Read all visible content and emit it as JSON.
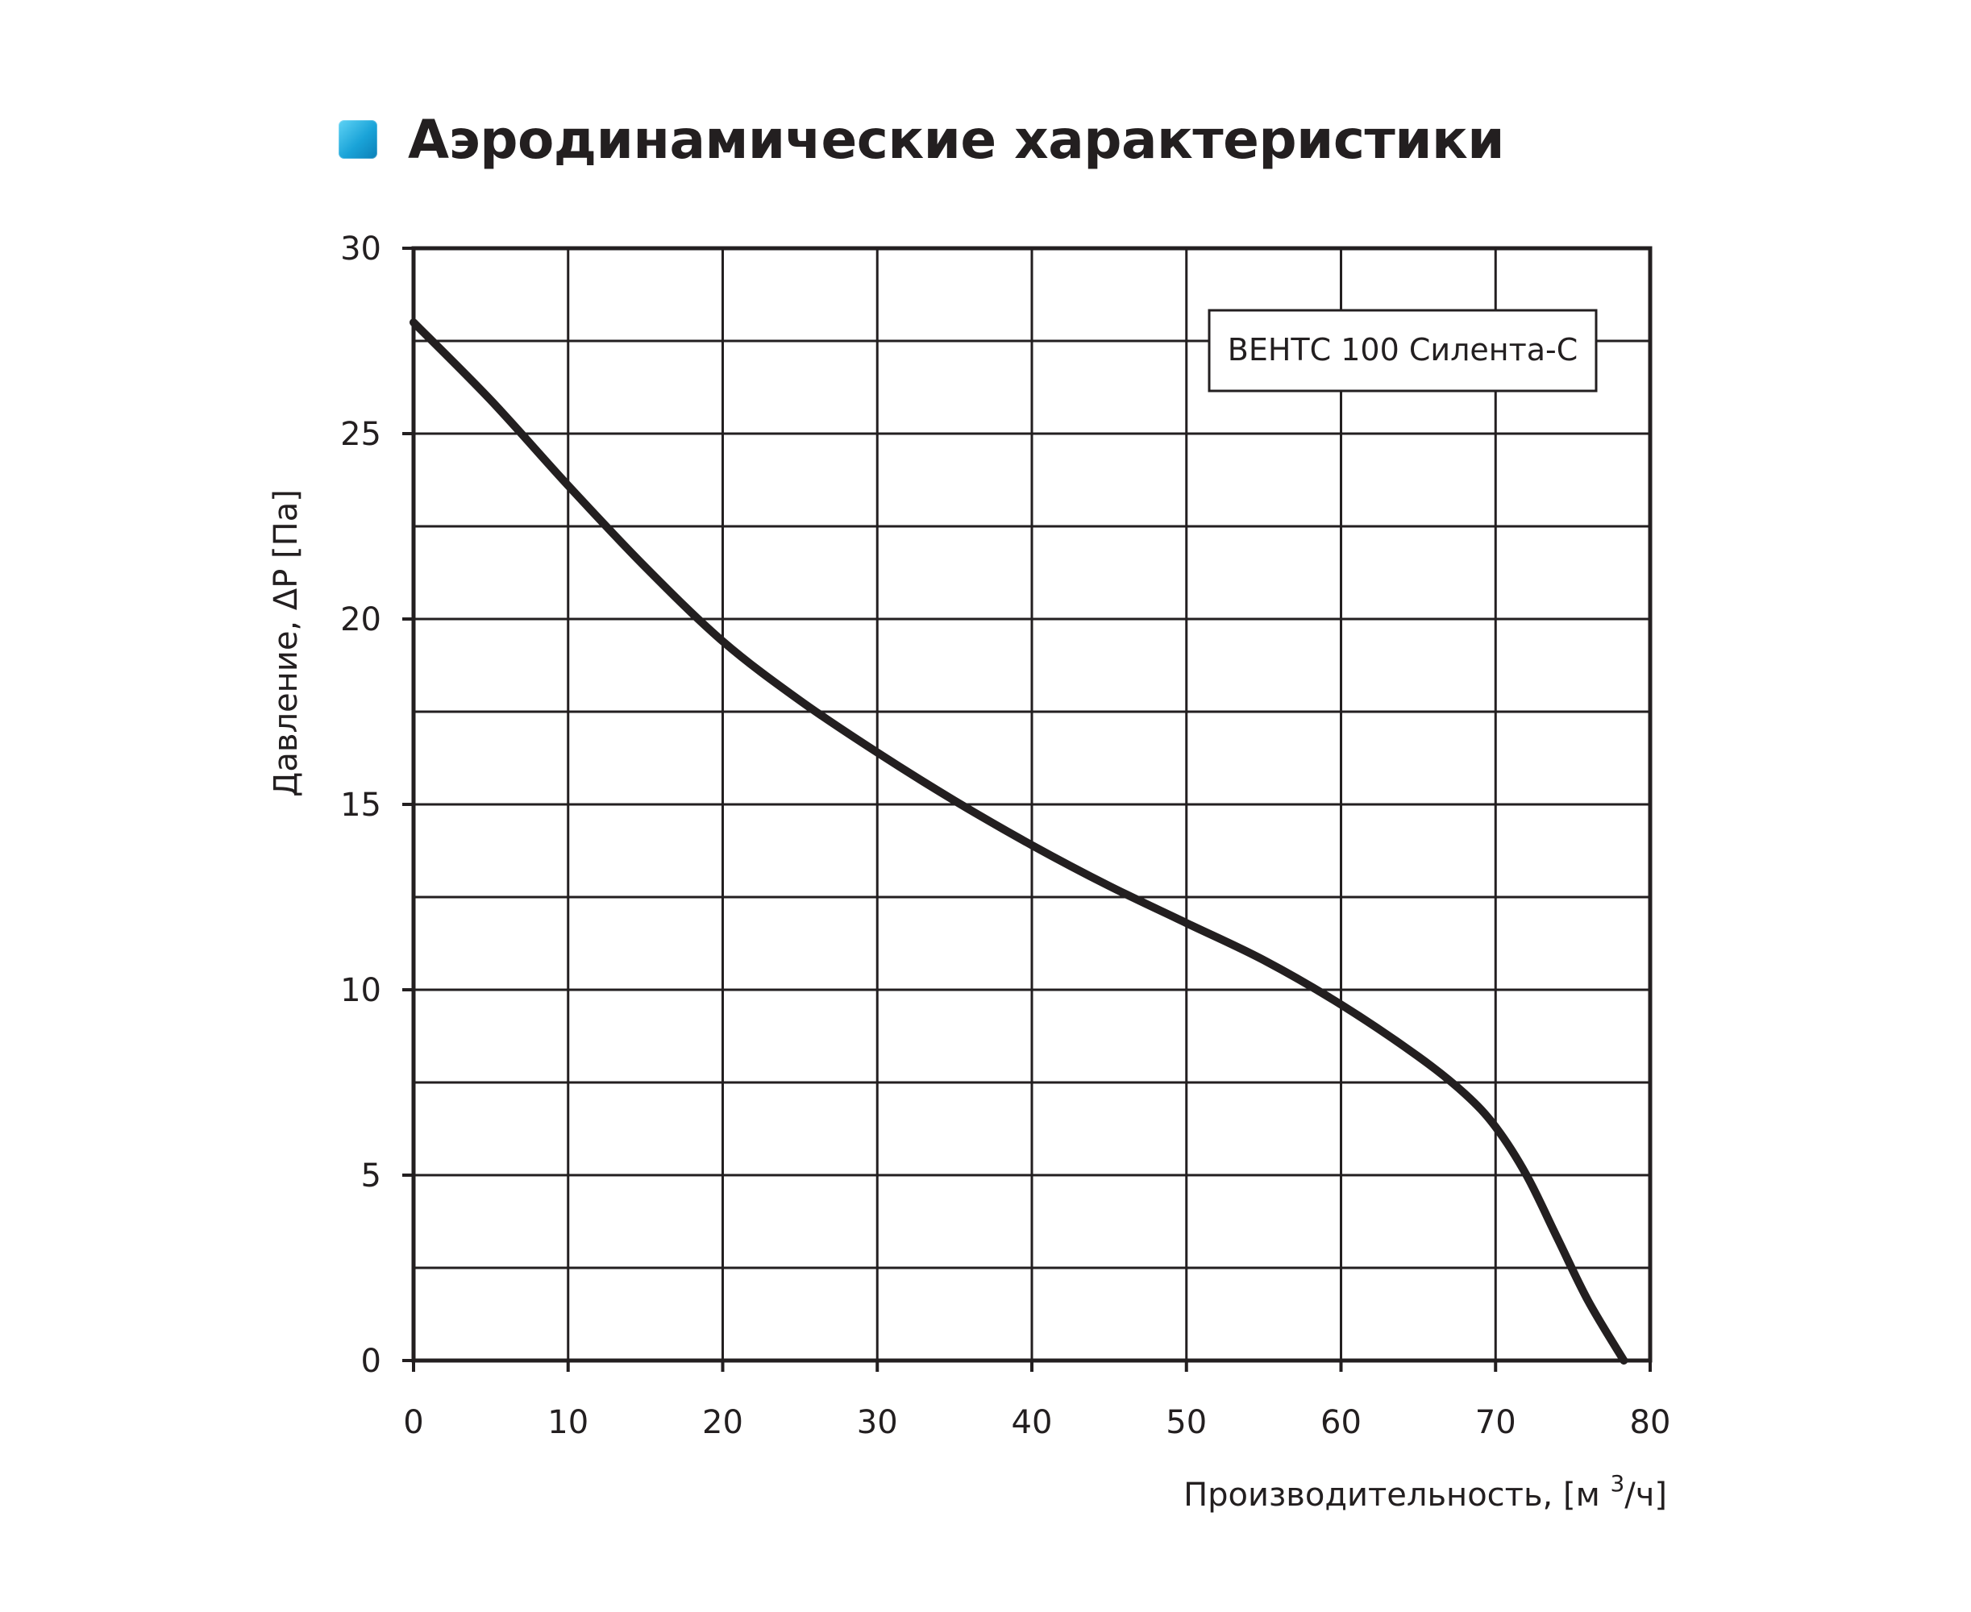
{
  "title": "Аэродинамические характеристики",
  "chart_data": {
    "type": "line",
    "title": "Аэродинамические характеристики",
    "xlabel": "Производительность, [м",
    "xlabel_sup": "3",
    "xlabel_suffix": "/ч]",
    "ylabel": "Давление, ΔP [Па]",
    "xlim": [
      0,
      80
    ],
    "ylim": [
      0,
      30
    ],
    "xticks": [
      "0",
      "10",
      "20",
      "30",
      "40",
      "50",
      "60",
      "70",
      "80"
    ],
    "yticks": [
      "0",
      "5",
      "10",
      "15",
      "20",
      "25",
      "30"
    ],
    "grid": true,
    "legend": "top-right",
    "series": [
      {
        "name": "ВЕНТС 100 Силента-С",
        "color": "#231f20",
        "x": [
          0,
          5,
          10,
          15,
          20,
          25,
          30,
          35,
          40,
          45,
          50,
          55,
          60,
          65,
          68,
          70,
          72,
          74,
          76,
          78.3
        ],
        "y": [
          28.0,
          25.9,
          23.6,
          21.4,
          19.4,
          17.8,
          16.4,
          15.1,
          13.9,
          12.8,
          11.8,
          10.8,
          9.6,
          8.2,
          7.2,
          6.3,
          5.0,
          3.3,
          1.6,
          0
        ]
      }
    ]
  }
}
